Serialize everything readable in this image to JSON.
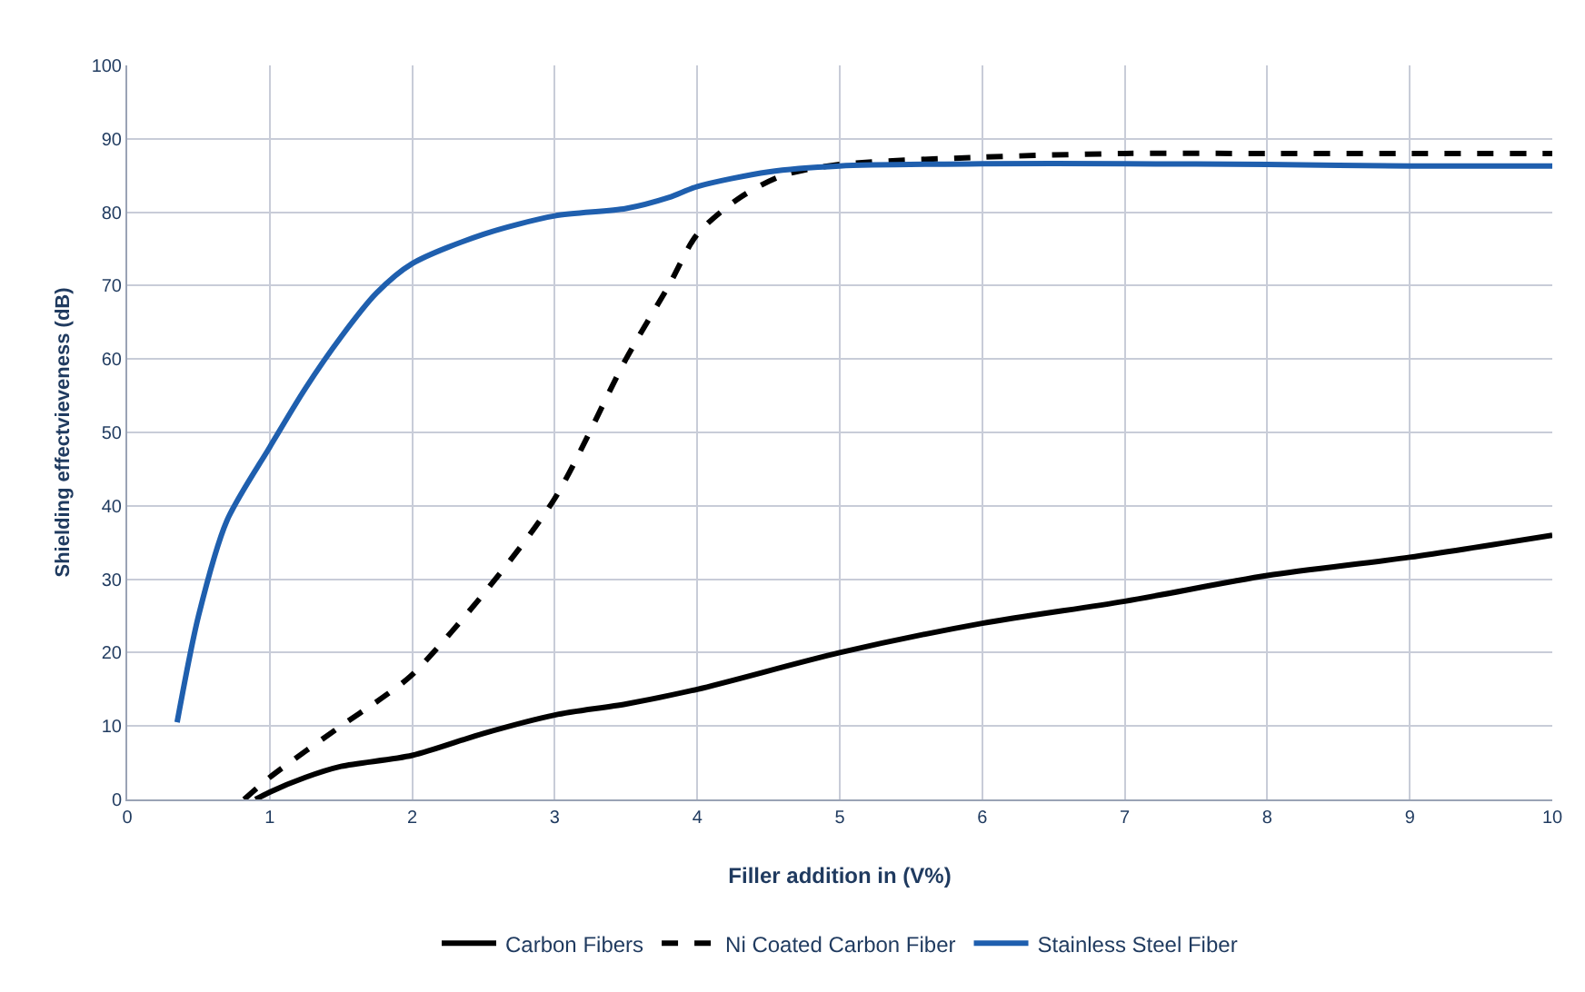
{
  "chart_data": {
    "type": "line",
    "xlabel": "Filler addition in (V%)",
    "ylabel": "Shielding effectvieveness (dB)",
    "xlim": [
      0,
      10
    ],
    "xticks": [
      0,
      1,
      2,
      3,
      4,
      5,
      6,
      7,
      8,
      9,
      10
    ],
    "ylim": [
      0,
      100
    ],
    "yticks": [
      0,
      10,
      20,
      30,
      40,
      50,
      60,
      70,
      80,
      90,
      100
    ],
    "grid": true,
    "legend": "bottom",
    "marker": "none",
    "series": [
      {
        "name": "Carbon Fibers",
        "color": "#000000",
        "line_style": "solid",
        "x": [
          0.9,
          1,
          1.25,
          1.5,
          2,
          2.5,
          3,
          3.5,
          4,
          5,
          6,
          7,
          8,
          9,
          10
        ],
        "values": [
          0,
          1,
          3,
          4.5,
          6,
          9,
          11.5,
          13,
          15,
          20,
          24,
          27,
          30.5,
          33,
          36
        ]
      },
      {
        "name": "Ni Coated Carbon Fiber",
        "color": "#000000",
        "line_style": "dashed",
        "x": [
          0.82,
          1,
          1.5,
          1.8,
          2,
          2.5,
          3,
          3.5,
          3.8,
          4,
          4.3,
          4.6,
          5,
          6,
          7,
          8,
          9,
          10
        ],
        "values": [
          0,
          3,
          10,
          14,
          17,
          28,
          41,
          60,
          70,
          77,
          82,
          85,
          86.5,
          87.5,
          88,
          88,
          88,
          88
        ]
      },
      {
        "name": "Stainless Steel Fiber",
        "color": "#1f5fae",
        "line_style": "solid",
        "x": [
          0.35,
          0.5,
          0.7,
          1,
          1.25,
          1.5,
          1.75,
          2,
          2.5,
          3,
          3.5,
          3.8,
          4,
          4.5,
          5,
          6,
          7,
          8,
          9,
          10
        ],
        "values": [
          10.5,
          25,
          38,
          48,
          56,
          63,
          69,
          73,
          77,
          79.5,
          80.5,
          82,
          83.5,
          85.5,
          86.3,
          86.6,
          86.6,
          86.5,
          86.3,
          86.3
        ]
      }
    ]
  }
}
